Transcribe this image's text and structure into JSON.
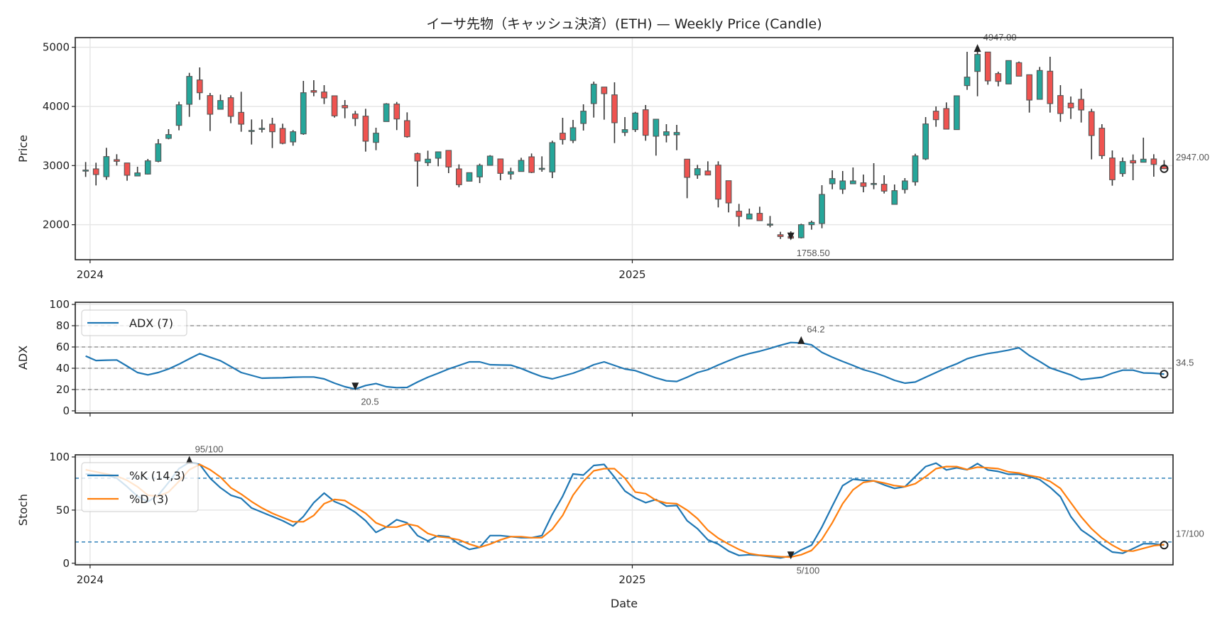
{
  "colors": {
    "up": "#26a69a",
    "down": "#ef5350",
    "edge": "#555555",
    "wick": "#333333",
    "adx": "#1f77b4",
    "k": "#1f77b4",
    "d": "#ff7f0e",
    "grid": "#e6e6e6",
    "level": "#999999"
  },
  "chart_data": [
    {
      "type": "candlestick",
      "title": "イーサ先物（キャッシュ決済）(ETH) — Weekly Price (Candle)",
      "ylabel": "Price",
      "ylim": [
        1408,
        5164
      ],
      "yticks": [
        2000,
        3000,
        4000,
        5000
      ],
      "xlim": [
        "2023-12-22",
        "2026-01-01"
      ],
      "xticks": [
        {
          "date": "2024-01-01",
          "label": "2024"
        },
        {
          "date": "2025-01-01",
          "label": "2025"
        }
      ],
      "grid": true,
      "dates": [
        "2023-12-29",
        "2024-01-05",
        "2024-01-12",
        "2024-01-19",
        "2024-01-26",
        "2024-02-02",
        "2024-02-09",
        "2024-02-16",
        "2024-02-23",
        "2024-03-01",
        "2024-03-08",
        "2024-03-15",
        "2024-03-22",
        "2024-03-29",
        "2024-04-05",
        "2024-04-12",
        "2024-04-19",
        "2024-04-26",
        "2024-05-03",
        "2024-05-10",
        "2024-05-17",
        "2024-05-24",
        "2024-05-31",
        "2024-06-07",
        "2024-06-14",
        "2024-06-21",
        "2024-06-28",
        "2024-07-05",
        "2024-07-12",
        "2024-07-19",
        "2024-07-26",
        "2024-08-02",
        "2024-08-09",
        "2024-08-16",
        "2024-08-23",
        "2024-08-30",
        "2024-09-06",
        "2024-09-13",
        "2024-09-20",
        "2024-09-27",
        "2024-10-04",
        "2024-10-11",
        "2024-10-18",
        "2024-10-25",
        "2024-11-01",
        "2024-11-08",
        "2024-11-15",
        "2024-11-22",
        "2024-11-29",
        "2024-12-06",
        "2024-12-13",
        "2024-12-20",
        "2024-12-27",
        "2025-01-03",
        "2025-01-10",
        "2025-01-17",
        "2025-01-24",
        "2025-01-31",
        "2025-02-07",
        "2025-02-14",
        "2025-02-21",
        "2025-02-28",
        "2025-03-07",
        "2025-03-14",
        "2025-03-21",
        "2025-03-28",
        "2025-04-04",
        "2025-04-11",
        "2025-04-18",
        "2025-04-25",
        "2025-05-02",
        "2025-05-09",
        "2025-05-16",
        "2025-05-23",
        "2025-05-30",
        "2025-06-06",
        "2025-06-13",
        "2025-06-20",
        "2025-06-27",
        "2025-07-04",
        "2025-07-11",
        "2025-07-18",
        "2025-07-25",
        "2025-08-01",
        "2025-08-08",
        "2025-08-15",
        "2025-08-22",
        "2025-08-29",
        "2025-09-05",
        "2025-09-12",
        "2025-09-19",
        "2025-09-26",
        "2025-10-03",
        "2025-10-10",
        "2025-10-17",
        "2025-10-24",
        "2025-10-31",
        "2025-11-07",
        "2025-11-14",
        "2025-11-21",
        "2025-11-28",
        "2025-12-05",
        "2025-12-12",
        "2025-12-19",
        "2025-12-26"
      ],
      "ohlc": [
        [
          2920,
          3060,
          2808,
          2924
        ],
        [
          2944,
          3048,
          2664,
          2848
        ],
        [
          2812,
          3300,
          2760,
          3152
        ],
        [
          3100,
          3192,
          3000,
          3072
        ],
        [
          3044,
          3044,
          2744,
          2836
        ],
        [
          2824,
          2980,
          2824,
          2876
        ],
        [
          2856,
          3112,
          2848,
          3080
        ],
        [
          3072,
          3448,
          3056,
          3368
        ],
        [
          3460,
          3616,
          3444,
          3524
        ],
        [
          3680,
          4080,
          3596,
          4028
        ],
        [
          4036,
          4568,
          3824,
          4508
        ],
        [
          4448,
          4660,
          4112,
          4232
        ],
        [
          4184,
          4228,
          3584,
          3868
        ],
        [
          3952,
          4200,
          3952,
          4100
        ],
        [
          4148,
          4188,
          3716,
          3832
        ],
        [
          3900,
          4248,
          3572,
          3700
        ],
        [
          3590,
          3780,
          3356,
          3594
        ],
        [
          3626,
          3780,
          3560,
          3630
        ],
        [
          3700,
          3808,
          3296,
          3572
        ],
        [
          3628,
          3708,
          3360,
          3376
        ],
        [
          3400,
          3600,
          3336,
          3572
        ],
        [
          3536,
          4432,
          3520,
          4232
        ],
        [
          4268,
          4444,
          4172,
          4240
        ],
        [
          4244,
          4360,
          4040,
          4144
        ],
        [
          4180,
          4180,
          3812,
          3840
        ],
        [
          4016,
          4108,
          3800,
          3976
        ],
        [
          3872,
          3924,
          3668,
          3796
        ],
        [
          3836,
          3960,
          3236,
          3412
        ],
        [
          3392,
          3640,
          3260,
          3548
        ],
        [
          3744,
          4056,
          3744,
          4044
        ],
        [
          4040,
          4076,
          3600,
          3788
        ],
        [
          3760,
          3900,
          3472,
          3488
        ],
        [
          3204,
          3220,
          2644,
          3076
        ],
        [
          3048,
          3252,
          2992,
          3108
        ],
        [
          3124,
          3232,
          2988,
          3232
        ],
        [
          3256,
          3256,
          2872,
          2976
        ],
        [
          2944,
          3020,
          2632,
          2676
        ],
        [
          2736,
          2880,
          2736,
          2880
        ],
        [
          2808,
          3032,
          2704,
          3004
        ],
        [
          3004,
          3176,
          3004,
          3160
        ],
        [
          3112,
          3112,
          2752,
          2868
        ],
        [
          2856,
          2964,
          2764,
          2896
        ],
        [
          2900,
          3132,
          2900,
          3088
        ],
        [
          3148,
          3204,
          2872,
          2884
        ],
        [
          2950,
          3156,
          2896,
          2954
        ],
        [
          2892,
          3420,
          2788,
          3388
        ],
        [
          3548,
          3808,
          3356,
          3440
        ],
        [
          3424,
          3772,
          3380,
          3640
        ],
        [
          3712,
          4036,
          3592,
          3920
        ],
        [
          4048,
          4420,
          3812,
          4376
        ],
        [
          4328,
          4328,
          3776,
          4216
        ],
        [
          4196,
          4408,
          3380,
          3724
        ],
        [
          3560,
          3820,
          3500,
          3608
        ],
        [
          3608,
          3908,
          3568,
          3888
        ],
        [
          3944,
          4024,
          3420,
          3512
        ],
        [
          3496,
          3784,
          3168,
          3784
        ],
        [
          3512,
          3700,
          3392,
          3572
        ],
        [
          3520,
          3688,
          3260,
          3560
        ],
        [
          3108,
          3108,
          2448,
          2800
        ],
        [
          2840,
          3012,
          2776,
          2948
        ],
        [
          2908,
          3072,
          2840,
          2840
        ],
        [
          3008,
          3072,
          2292,
          2432
        ],
        [
          2744,
          2744,
          2208,
          2368
        ],
        [
          2228,
          2352,
          1968,
          2140
        ],
        [
          2096,
          2272,
          2096,
          2180
        ],
        [
          2192,
          2304,
          2068,
          2068
        ],
        [
          2006,
          2148,
          1956,
          2010
        ],
        [
          1830,
          1880,
          1758.5,
          1800
        ],
        [
          1800,
          1888,
          1765,
          1772
        ],
        [
          1780,
          2016,
          1768,
          2000
        ],
        [
          2000,
          2068,
          1916,
          2040
        ],
        [
          2020,
          2668,
          1940,
          2512
        ],
        [
          2692,
          2920,
          2600,
          2780
        ],
        [
          2600,
          2908,
          2520,
          2740
        ],
        [
          2692,
          2968,
          2692,
          2740
        ],
        [
          2708,
          2848,
          2548,
          2648
        ],
        [
          2694,
          3040,
          2600,
          2698
        ],
        [
          2684,
          2836,
          2528,
          2568
        ],
        [
          2344,
          2680,
          2344,
          2576
        ],
        [
          2596,
          2788,
          2528,
          2740
        ],
        [
          2724,
          3200,
          2660,
          3164
        ],
        [
          3112,
          3820,
          3092,
          3704
        ],
        [
          3920,
          4000,
          3656,
          3776
        ],
        [
          3964,
          4068,
          3616,
          3616
        ],
        [
          3608,
          4180,
          3608,
          4180
        ],
        [
          4352,
          4924,
          4280,
          4496
        ],
        [
          4592,
          4947,
          4172,
          4880
        ],
        [
          4920,
          4920,
          4368,
          4432
        ],
        [
          4556,
          4588,
          4340,
          4424
        ],
        [
          4380,
          4776,
          4380,
          4776
        ],
        [
          4740,
          4760,
          4512,
          4512
        ],
        [
          4536,
          4536,
          3896,
          4108
        ],
        [
          4120,
          4668,
          4120,
          4608
        ],
        [
          4596,
          4840,
          3896,
          4048
        ],
        [
          4184,
          4360,
          3740,
          3880
        ],
        [
          4056,
          4168,
          3788,
          3976
        ],
        [
          4120,
          4300,
          3728,
          3940
        ],
        [
          3912,
          3960,
          3104,
          3508
        ],
        [
          3632,
          3700,
          3112,
          3168
        ],
        [
          3128,
          3256,
          2660,
          2760
        ],
        [
          2864,
          3136,
          2812,
          3068
        ],
        [
          3084,
          3188,
          2752,
          3044
        ],
        [
          3056,
          3472,
          3056,
          3108
        ],
        [
          3112,
          3192,
          2812,
          3020
        ],
        [
          2988,
          3092,
          2940,
          2947
        ]
      ],
      "ohlc_fields": [
        "open",
        "high",
        "low",
        "close"
      ],
      "annotations": {
        "max": {
          "date": "2025-08-22",
          "value": 4947.0,
          "label": "4947.00"
        },
        "min": {
          "date": "2025-04-18",
          "value": 1758.5,
          "label": "1758.50"
        },
        "last": {
          "date": "2025-12-26",
          "value": 2947.0,
          "label": "2947.00"
        }
      }
    },
    {
      "type": "line",
      "ylabel": "ADX",
      "ylim": [
        -2,
        102
      ],
      "yticks": [
        0,
        20,
        40,
        60,
        80,
        100
      ],
      "reference_lines": [
        20,
        40,
        60,
        80
      ],
      "legend": "top-left",
      "series": [
        {
          "name": "ADX (7)",
          "values": [
            51.5,
            47.3,
            47.6,
            47.8,
            42,
            36,
            33.8,
            36,
            39.3,
            43.8,
            48.9,
            53.8,
            50.4,
            47.1,
            41.6,
            36,
            33.3,
            30.7,
            30.9,
            31.1,
            31.6,
            31.8,
            31.8,
            30,
            26,
            22.7,
            20.5,
            23.8,
            25.6,
            22.7,
            21.8,
            22,
            27.1,
            31.6,
            35.3,
            39.3,
            42.7,
            46,
            46,
            43.3,
            43.1,
            42.9,
            39.8,
            35.8,
            32.2,
            30,
            32.7,
            35.3,
            38.9,
            43.3,
            46,
            42.7,
            39.3,
            37.8,
            34.4,
            30.9,
            28.2,
            27.6,
            31.6,
            36,
            38.7,
            43.1,
            47.1,
            50.9,
            53.8,
            56,
            58.7,
            61.6,
            64.2,
            63.8,
            62,
            54.9,
            50.4,
            46.4,
            42.7,
            38.7,
            36,
            32.7,
            28.7,
            26,
            27.1,
            31.6,
            36,
            40.4,
            44.2,
            48.9,
            51.6,
            53.8,
            55.3,
            57.1,
            59.3,
            52,
            46.4,
            40.4,
            37.1,
            33.8,
            29.3,
            30.4,
            31.6,
            35.3,
            38.2,
            38.2,
            35.6,
            35.3,
            34.5
          ]
        }
      ],
      "annotations": {
        "max": {
          "date": "2025-04-25",
          "value": 64.2,
          "label": "64.2"
        },
        "min": {
          "date": "2024-06-28",
          "value": 20.5,
          "label": "20.5"
        },
        "last": {
          "date": "2025-12-26",
          "value": 34.5,
          "label": "34.5"
        }
      }
    },
    {
      "type": "line",
      "ylabel": "Stoch",
      "xlabel": "Date",
      "ylim": [
        -1.5,
        102
      ],
      "yticks": [
        0,
        50,
        100
      ],
      "reference_lines": [
        20,
        80
      ],
      "legend": "top-left",
      "series": [
        {
          "name": "%K (14,3)",
          "values": [
            84,
            83,
            83,
            80,
            72,
            63,
            58,
            64,
            76,
            89,
            95,
            93,
            80,
            71,
            64,
            61,
            52,
            48,
            44,
            40,
            35,
            44,
            57,
            66,
            58,
            54,
            48,
            40,
            29,
            34,
            41,
            38,
            26,
            21,
            26,
            25,
            18,
            13,
            15,
            26,
            26,
            25,
            24,
            24,
            26,
            46,
            63,
            84,
            83,
            92,
            93,
            81,
            68,
            61.5,
            57,
            60,
            53.7,
            54.3,
            40,
            32.5,
            22,
            18,
            11.4,
            7.3,
            8,
            7.3,
            6.2,
            5,
            6.9,
            12.5,
            17,
            34,
            53.7,
            73,
            79,
            78,
            77.5,
            73.7,
            70.4,
            72,
            81.5,
            91,
            94.2,
            87.8,
            89.8,
            88,
            93.8,
            87.8,
            86.4,
            83.7,
            83.7,
            81.5,
            78.6,
            71.5,
            62.6,
            44,
            31.4,
            24.7,
            17,
            10.5,
            9.4,
            13.8,
            18.3,
            18.3,
            17
          ]
        },
        {
          "name": "%D (3)",
          "values": [
            88,
            86,
            84,
            82,
            78,
            72,
            64,
            63,
            67,
            77,
            88,
            93,
            88,
            81,
            71,
            65,
            58,
            52,
            47,
            43,
            39,
            39,
            45,
            56,
            60,
            59,
            53,
            47,
            38,
            34,
            34,
            37,
            35,
            28,
            25,
            24,
            22,
            18,
            15,
            18,
            22,
            25,
            25,
            24,
            24,
            32,
            45,
            64,
            77,
            87,
            89,
            89,
            80,
            67,
            65.5,
            59.2,
            56.6,
            56,
            50,
            42,
            31,
            23.6,
            18,
            13,
            9.1,
            7.6,
            6.9,
            6.2,
            5.8,
            8,
            12,
            22.5,
            38,
            56,
            69,
            76,
            77.5,
            75.5,
            73,
            72,
            74.8,
            81.5,
            89,
            91,
            90.9,
            88.2,
            90.4,
            89.8,
            89,
            86,
            84.9,
            82.6,
            80.8,
            77,
            70.4,
            57,
            43.7,
            32.5,
            23.6,
            17,
            11.8,
            11.4,
            14,
            16.5,
            17.5
          ]
        }
      ],
      "annotations": {
        "max": {
          "date": "2024-03-08",
          "value": 95,
          "label": "95/100"
        },
        "min": {
          "date": "2025-04-18",
          "value": 5,
          "label": "5/100"
        },
        "last": {
          "date": "2025-12-26",
          "value": 17,
          "label": "17/100"
        }
      }
    }
  ]
}
